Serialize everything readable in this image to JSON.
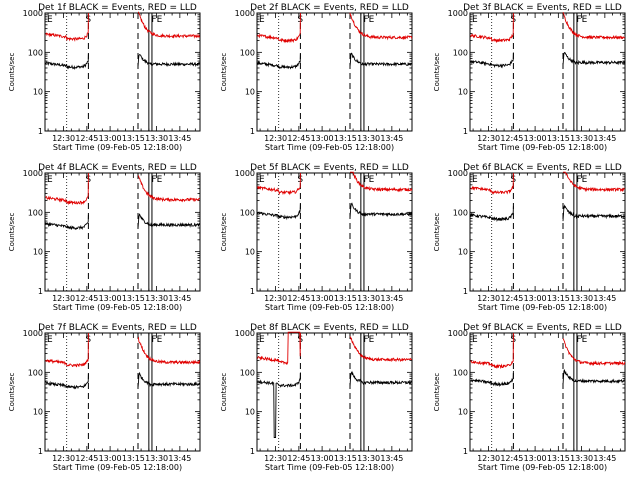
{
  "figure": {
    "xlabel_template": "Start Time (09-Feb-05 12:18:00)",
    "ylabel": "Counts/sec",
    "marker_labels": [
      "E",
      "S",
      "FE"
    ]
  },
  "colors": {
    "events": "#000000",
    "lld": "#e00000",
    "axis": "#000000",
    "background": "#ffffff"
  },
  "chart_data": [
    {
      "type": "line",
      "title": "Det 1f BLACK = Events, RED = LLD",
      "xlabel": "Start Time (09-Feb-05 12:18:00)",
      "ylabel": "Counts/sec",
      "xtick_labels": [
        "12:30",
        "12:45",
        "13:00",
        "13:15",
        "13:30",
        "13:45"
      ],
      "xtick_minutes": [
        12,
        27,
        42,
        57,
        72,
        87
      ],
      "xlim_minutes": [
        0,
        100
      ],
      "ylim": [
        1,
        1000
      ],
      "yscale": "log",
      "ytick_labels": [
        "1",
        "10",
        "100",
        "1000"
      ],
      "markers": {
        "E": 0,
        "S": 28,
        "FE": 68
      },
      "vlines_dotted_minutes": [
        14
      ],
      "vlines_dashed_minutes": [
        28,
        60
      ],
      "vlines_solid_minutes": [
        67,
        69
      ],
      "gap_minutes": [
        28,
        60
      ],
      "series": [
        {
          "name": "Events",
          "color": "#000000",
          "base": 50,
          "anomaly": null
        },
        {
          "name": "LLD",
          "color": "#e00000",
          "base": 260,
          "anomaly": null
        }
      ]
    },
    {
      "type": "line",
      "title": "Det 2f BLACK = Events, RED = LLD",
      "xlabel": "Start Time (09-Feb-05 12:18:00)",
      "ylabel": "Counts/sec",
      "xtick_labels": [
        "12:30",
        "12:45",
        "13:00",
        "13:15",
        "13:30",
        "13:45"
      ],
      "xtick_minutes": [
        12,
        27,
        42,
        57,
        72,
        87
      ],
      "xlim_minutes": [
        0,
        100
      ],
      "ylim": [
        1,
        1000
      ],
      "yscale": "log",
      "ytick_labels": [
        "1",
        "10",
        "100",
        "1000"
      ],
      "markers": {
        "E": 0,
        "S": 28,
        "FE": 68
      },
      "vlines_dotted_minutes": [
        14
      ],
      "vlines_dashed_minutes": [
        28,
        60
      ],
      "vlines_solid_minutes": [
        67,
        69
      ],
      "gap_minutes": [
        28,
        60
      ],
      "series": [
        {
          "name": "Events",
          "color": "#000000",
          "base": 50,
          "anomaly": null
        },
        {
          "name": "LLD",
          "color": "#e00000",
          "base": 240,
          "anomaly": null
        }
      ]
    },
    {
      "type": "line",
      "title": "Det 3f BLACK = Events, RED = LLD",
      "xlabel": "Start Time (09-Feb-05 12:18:00)",
      "ylabel": "Counts/sec",
      "xtick_labels": [
        "12:30",
        "12:45",
        "13:00",
        "13:15",
        "13:30",
        "13:45"
      ],
      "xtick_minutes": [
        12,
        27,
        42,
        57,
        72,
        87
      ],
      "xlim_minutes": [
        0,
        100
      ],
      "ylim": [
        1,
        1000
      ],
      "yscale": "log",
      "ytick_labels": [
        "1",
        "10",
        "100",
        "1000"
      ],
      "markers": {
        "E": 0,
        "S": 28,
        "FE": 68
      },
      "vlines_dotted_minutes": [
        14
      ],
      "vlines_dashed_minutes": [
        28,
        60
      ],
      "vlines_solid_minutes": [
        67,
        69
      ],
      "gap_minutes": [
        28,
        60
      ],
      "series": [
        {
          "name": "Events",
          "color": "#000000",
          "base": 55,
          "anomaly": null
        },
        {
          "name": "LLD",
          "color": "#e00000",
          "base": 240,
          "anomaly": null
        }
      ]
    },
    {
      "type": "line",
      "title": "Det 4f BLACK = Events, RED = LLD",
      "xlabel": "Start Time (09-Feb-05 12:18:00)",
      "ylabel": "Counts/sec",
      "xtick_labels": [
        "12:30",
        "12:45",
        "13:00",
        "13:15",
        "13:30",
        "13:45"
      ],
      "xtick_minutes": [
        12,
        27,
        42,
        57,
        72,
        87
      ],
      "xlim_minutes": [
        0,
        100
      ],
      "ylim": [
        1,
        1000
      ],
      "yscale": "log",
      "ytick_labels": [
        "1",
        "10",
        "100",
        "1000"
      ],
      "markers": {
        "E": 0,
        "S": 28,
        "FE": 68
      },
      "vlines_dotted_minutes": [
        14
      ],
      "vlines_dashed_minutes": [
        28,
        60
      ],
      "vlines_solid_minutes": [
        67,
        69
      ],
      "gap_minutes": [
        28,
        60
      ],
      "series": [
        {
          "name": "Events",
          "color": "#000000",
          "base": 48,
          "anomaly": null
        },
        {
          "name": "LLD",
          "color": "#e00000",
          "base": 210,
          "anomaly": null
        }
      ]
    },
    {
      "type": "line",
      "title": "Det 5f BLACK = Events, RED = LLD",
      "xlabel": "Start Time (09-Feb-05 12:18:00)",
      "ylabel": "Counts/sec",
      "xtick_labels": [
        "12:30",
        "12:45",
        "13:00",
        "13:15",
        "13:30",
        "13:45"
      ],
      "xtick_minutes": [
        12,
        27,
        42,
        57,
        72,
        87
      ],
      "xlim_minutes": [
        0,
        100
      ],
      "ylim": [
        1,
        1000
      ],
      "yscale": "log",
      "ytick_labels": [
        "1",
        "10",
        "100",
        "1000"
      ],
      "markers": {
        "E": 0,
        "S": 28,
        "FE": 68
      },
      "vlines_dotted_minutes": [
        14
      ],
      "vlines_dashed_minutes": [
        28,
        60
      ],
      "vlines_solid_minutes": [
        67,
        69
      ],
      "gap_minutes": [
        28,
        60
      ],
      "series": [
        {
          "name": "Events",
          "color": "#000000",
          "base": 90,
          "anomaly": null
        },
        {
          "name": "LLD",
          "color": "#e00000",
          "base": 380,
          "anomaly": null
        }
      ]
    },
    {
      "type": "line",
      "title": "Det 6f BLACK = Events, RED = LLD",
      "xlabel": "Start Time (09-Feb-05 12:18:00)",
      "ylabel": "Counts/sec",
      "xtick_labels": [
        "12:30",
        "12:45",
        "13:00",
        "13:15",
        "13:30",
        "13:45"
      ],
      "xtick_minutes": [
        12,
        27,
        42,
        57,
        72,
        87
      ],
      "xlim_minutes": [
        0,
        100
      ],
      "ylim": [
        1,
        1000
      ],
      "yscale": "log",
      "ytick_labels": [
        "1",
        "10",
        "100",
        "1000"
      ],
      "markers": {
        "E": 0,
        "S": 28,
        "FE": 68
      },
      "vlines_dotted_minutes": [
        14
      ],
      "vlines_dashed_minutes": [
        28,
        60
      ],
      "vlines_solid_minutes": [
        67,
        69
      ],
      "gap_minutes": [
        28,
        60
      ],
      "series": [
        {
          "name": "Events",
          "color": "#000000",
          "base": 80,
          "anomaly": null
        },
        {
          "name": "LLD",
          "color": "#e00000",
          "base": 380,
          "anomaly": null
        }
      ]
    },
    {
      "type": "line",
      "title": "Det 7f BLACK = Events, RED = LLD",
      "xlabel": "Start Time (09-Feb-05 12:18:00)",
      "ylabel": "Counts/sec",
      "xtick_labels": [
        "12:30",
        "12:45",
        "13:00",
        "13:15",
        "13:30",
        "13:45"
      ],
      "xtick_minutes": [
        12,
        27,
        42,
        57,
        72,
        87
      ],
      "xlim_minutes": [
        0,
        100
      ],
      "ylim": [
        1,
        1000
      ],
      "yscale": "log",
      "ytick_labels": [
        "1",
        "10",
        "100",
        "1000"
      ],
      "markers": {
        "E": 0,
        "S": 28,
        "FE": 68
      },
      "vlines_dotted_minutes": [
        14
      ],
      "vlines_dashed_minutes": [
        28,
        60
      ],
      "vlines_solid_minutes": [
        67,
        69
      ],
      "gap_minutes": [
        28,
        60
      ],
      "series": [
        {
          "name": "Events",
          "color": "#000000",
          "base": 50,
          "anomaly": null
        },
        {
          "name": "LLD",
          "color": "#e00000",
          "base": 180,
          "anomaly": null
        }
      ]
    },
    {
      "type": "line",
      "title": "Det 8f BLACK = Events, RED = LLD",
      "xlabel": "Start Time (09-Feb-05 12:18:00)",
      "ylabel": "Counts/sec",
      "xtick_labels": [
        "12:30",
        "12:45",
        "13:00",
        "13:15",
        "13:30",
        "13:45"
      ],
      "xtick_minutes": [
        12,
        27,
        42,
        57,
        72,
        87
      ],
      "xlim_minutes": [
        0,
        100
      ],
      "ylim": [
        1,
        1000
      ],
      "yscale": "log",
      "ytick_labels": [
        "1",
        "10",
        "100",
        "1000"
      ],
      "markers": {
        "E": 0,
        "S": 28,
        "FE": 68
      },
      "vlines_dotted_minutes": [
        14
      ],
      "vlines_dashed_minutes": [
        28,
        60
      ],
      "vlines_solid_minutes": [
        67,
        69
      ],
      "gap_minutes": [
        28,
        60
      ],
      "series": [
        {
          "name": "Events",
          "color": "#000000",
          "base": 55,
          "anomaly": "dip"
        },
        {
          "name": "LLD",
          "color": "#e00000",
          "base": 210,
          "anomaly": "spike"
        }
      ]
    },
    {
      "type": "line",
      "title": "Det 9f BLACK = Events, RED = LLD",
      "xlabel": "Start Time (09-Feb-05 12:18:00)",
      "ylabel": "Counts/sec",
      "xtick_labels": [
        "12:30",
        "12:45",
        "13:00",
        "13:15",
        "13:30",
        "13:45"
      ],
      "xtick_minutes": [
        12,
        27,
        42,
        57,
        72,
        87
      ],
      "xlim_minutes": [
        0,
        100
      ],
      "ylim": [
        1,
        1000
      ],
      "yscale": "log",
      "ytick_labels": [
        "1",
        "10",
        "100",
        "1000"
      ],
      "markers": {
        "E": 0,
        "S": 28,
        "FE": 68
      },
      "vlines_dotted_minutes": [
        14
      ],
      "vlines_dashed_minutes": [
        28,
        60
      ],
      "vlines_solid_minutes": [
        67,
        69
      ],
      "gap_minutes": [
        28,
        60
      ],
      "series": [
        {
          "name": "Events",
          "color": "#000000",
          "base": 60,
          "anomaly": null
        },
        {
          "name": "LLD",
          "color": "#e00000",
          "base": 170,
          "anomaly": null
        }
      ]
    }
  ]
}
